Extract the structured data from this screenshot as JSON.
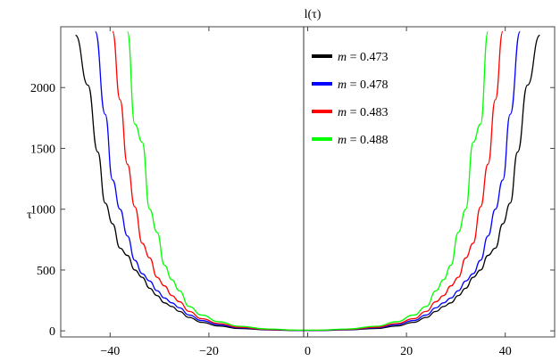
{
  "chart_data": {
    "type": "line",
    "title": "l(τ)",
    "xlabel": "",
    "ylabel": "τ",
    "xlim": [
      -50,
      50
    ],
    "ylim": [
      -50,
      2500
    ],
    "xticks": [
      -40,
      -20,
      0,
      20,
      40
    ],
    "yticks": [
      0,
      500,
      1000,
      1500,
      2000
    ],
    "xtick_labels": [
      "−40",
      "−20",
      "0",
      "20",
      "40"
    ],
    "ytick_labels": [
      "0",
      "500",
      "1000",
      "1500",
      "2000"
    ],
    "legend_position": "top-center",
    "series": [
      {
        "name": "m = 0.473",
        "m_value": "0.473",
        "color": "#000000",
        "x": [
          -47,
          -44.5,
          -42.5,
          -41,
          -39.5,
          -38,
          -36.5,
          -35,
          -33.5,
          -32,
          -30.5,
          -29,
          -27.5,
          -26,
          -24,
          -21.5,
          -18,
          -14,
          -8,
          -2,
          2,
          8,
          14,
          18,
          21.5,
          24,
          26,
          27.5,
          29,
          30.5,
          32,
          33.5,
          35,
          36.5,
          38,
          39.5,
          41,
          42.5,
          44.5,
          47
        ],
        "y": [
          2430,
          2020,
          1470,
          1050,
          880,
          680,
          620,
          500,
          440,
          350,
          290,
          230,
          200,
          160,
          110,
          70,
          40,
          20,
          8,
          3,
          3,
          8,
          20,
          40,
          70,
          110,
          160,
          200,
          230,
          290,
          350,
          440,
          500,
          620,
          680,
          880,
          1050,
          1470,
          2020,
          2430
        ]
      },
      {
        "name": "m = 0.478",
        "m_value": "0.478",
        "color": "#0000ff",
        "x": [
          -43,
          -41,
          -39.5,
          -38,
          -36.5,
          -35,
          -33.5,
          -32,
          -30.5,
          -29,
          -27.5,
          -26,
          -24,
          -21.5,
          -18,
          -14,
          -8,
          -2,
          2,
          8,
          14,
          18,
          21.5,
          24,
          26,
          27.5,
          29,
          30.5,
          32,
          33.5,
          35,
          36.5,
          38,
          39.5,
          41,
          43
        ],
        "y": [
          2460,
          1780,
          1240,
          1000,
          780,
          580,
          470,
          410,
          330,
          270,
          230,
          190,
          130,
          85,
          50,
          25,
          10,
          4,
          4,
          10,
          25,
          50,
          85,
          130,
          190,
          230,
          270,
          330,
          410,
          470,
          580,
          780,
          1000,
          1240,
          1780,
          2460
        ]
      },
      {
        "name": "m = 0.483",
        "m_value": "0.483",
        "color": "#ff0000",
        "x": [
          -39.5,
          -38,
          -36.5,
          -35,
          -33.5,
          -32,
          -30.5,
          -29,
          -27.5,
          -26,
          -24,
          -21.5,
          -18,
          -14,
          -8,
          -2,
          2,
          8,
          14,
          18,
          21.5,
          24,
          26,
          27.5,
          29,
          30.5,
          32,
          33.5,
          35,
          36.5,
          38,
          39.5
        ],
        "y": [
          2460,
          1900,
          1370,
          1020,
          720,
          600,
          440,
          370,
          290,
          240,
          160,
          100,
          60,
          30,
          12,
          5,
          5,
          12,
          30,
          60,
          100,
          160,
          240,
          290,
          370,
          440,
          600,
          720,
          1020,
          1370,
          1900,
          2460
        ]
      },
      {
        "name": "m = 0.488",
        "m_value": "0.488",
        "color": "#00ff00",
        "x": [
          -36.5,
          -35,
          -33.5,
          -32,
          -30.5,
          -29,
          -27.5,
          -26,
          -24,
          -21.5,
          -18,
          -14,
          -8,
          -2,
          2,
          8,
          14,
          18,
          21.5,
          24,
          26,
          27.5,
          29,
          30.5,
          32,
          33.5,
          35,
          36.5
        ],
        "y": [
          2460,
          1700,
          1550,
          1000,
          810,
          540,
          420,
          330,
          200,
          130,
          75,
          38,
          15,
          6,
          6,
          15,
          38,
          75,
          130,
          200,
          330,
          420,
          540,
          810,
          1000,
          1550,
          1700,
          2460
        ]
      }
    ]
  }
}
